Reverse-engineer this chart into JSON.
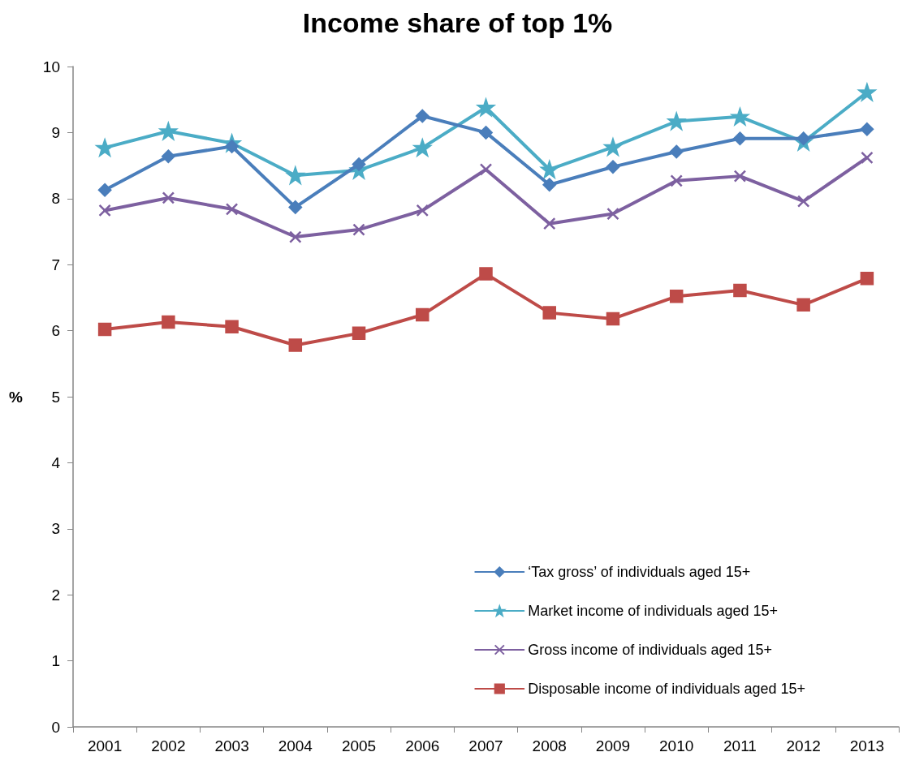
{
  "chart_data": {
    "type": "line",
    "title": "Income share of top 1%",
    "ylabel": "%",
    "categories": [
      "2001",
      "2002",
      "2003",
      "2004",
      "2005",
      "2006",
      "2007",
      "2008",
      "2009",
      "2010",
      "2011",
      "2012",
      "2013"
    ],
    "ylim": [
      0,
      10
    ],
    "yticks": [
      0,
      1,
      2,
      3,
      4,
      5,
      6,
      7,
      8,
      9,
      10
    ],
    "grid": false,
    "legend": "bottom right",
    "line_style": "solid",
    "series": [
      {
        "name": "‘Tax gross’ of individuals aged 15+",
        "color": "#4a7ebb",
        "marker": "diamond",
        "values": [
          8.13,
          8.64,
          8.79,
          7.87,
          8.52,
          9.25,
          9.0,
          8.21,
          8.48,
          8.71,
          8.91,
          8.91,
          9.05
        ]
      },
      {
        "name": "Market income of individuals aged 15+",
        "color": "#4bacc6",
        "marker": "star",
        "values": [
          8.77,
          9.02,
          8.84,
          8.35,
          8.43,
          8.77,
          9.38,
          8.44,
          8.78,
          9.17,
          9.24,
          8.86,
          9.61
        ]
      },
      {
        "name": "Gross income of individuals aged 15+",
        "color": "#7d60a0",
        "marker": "cross",
        "values": [
          7.82,
          8.01,
          7.84,
          7.42,
          7.53,
          7.82,
          8.44,
          7.62,
          7.77,
          8.27,
          8.34,
          7.96,
          8.62
        ]
      },
      {
        "name": "Disposable income of individuals aged 15+",
        "color": "#be4b48",
        "marker": "square",
        "values": [
          6.02,
          6.13,
          6.06,
          5.78,
          5.96,
          6.24,
          6.86,
          6.27,
          6.18,
          6.52,
          6.61,
          6.39,
          6.79
        ]
      }
    ]
  }
}
